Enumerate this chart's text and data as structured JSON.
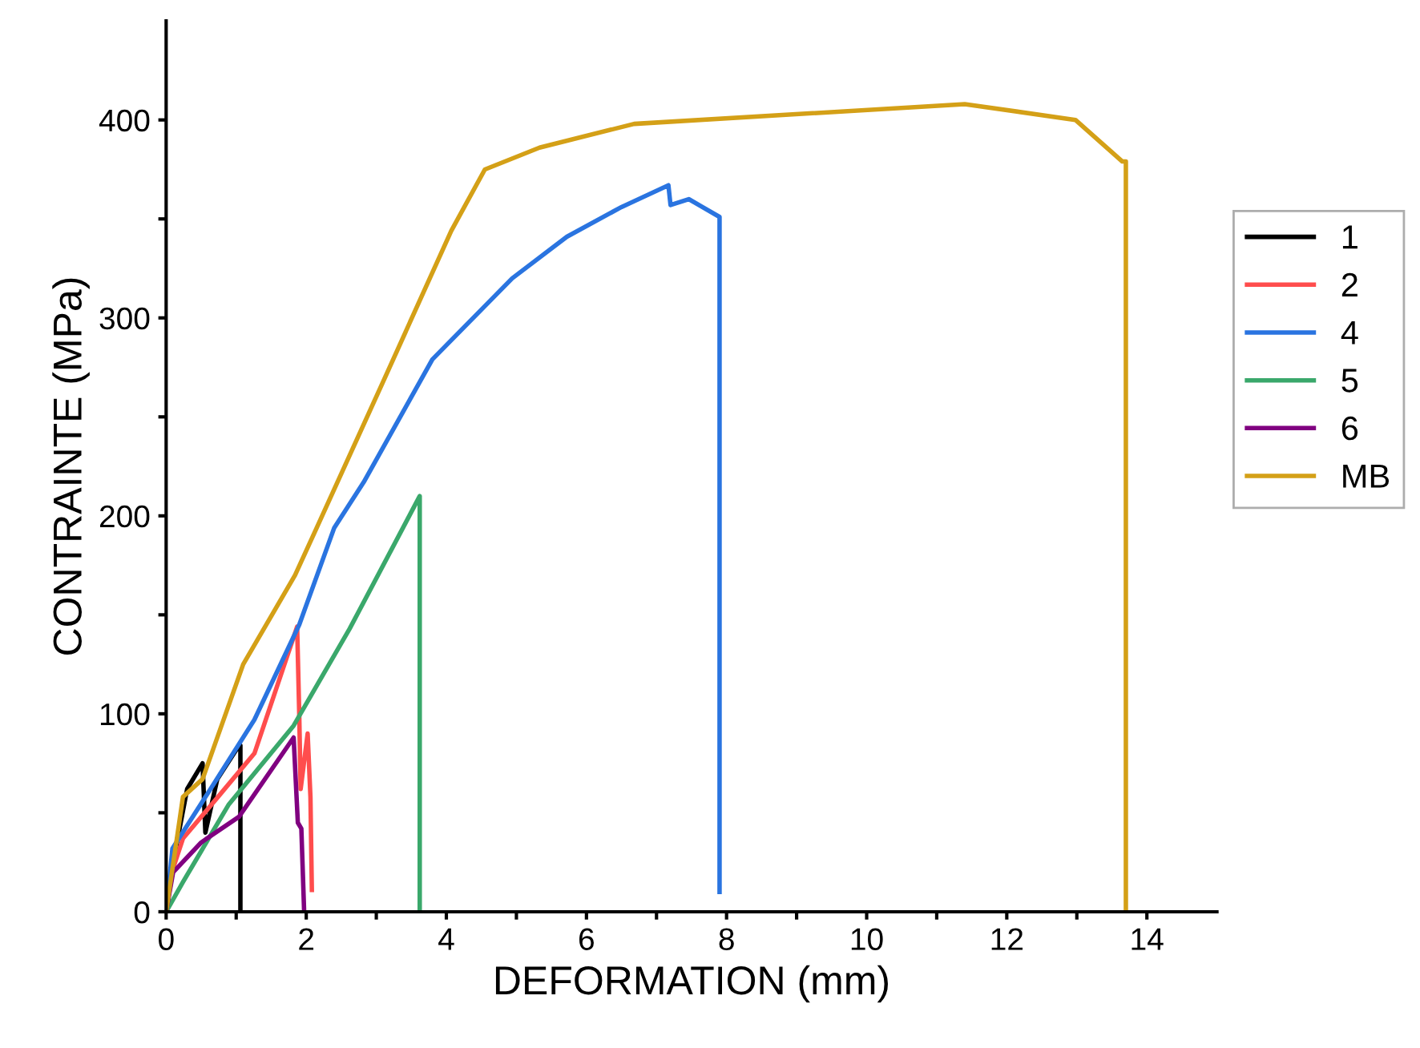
{
  "chart_data": {
    "type": "line",
    "xlabel": "DEFORMATION (mm)",
    "ylabel": "CONTRAINTE (MPa)",
    "xlim": [
      0,
      15
    ],
    "ylim": [
      0,
      450
    ],
    "xticks": [
      0,
      {
        "value": 1,
        "label": null
      },
      2,
      {
        "value": 3,
        "label": null
      },
      4,
      {
        "value": 5,
        "label": null
      },
      6,
      {
        "value": 7,
        "label": null
      },
      8,
      {
        "value": 9,
        "label": null
      },
      10,
      {
        "value": 11,
        "label": null
      },
      12,
      {
        "value": 13,
        "label": null
      },
      14
    ],
    "yticks": [
      0,
      {
        "value": 50,
        "label": null
      },
      100,
      {
        "value": 150,
        "label": null
      },
      200,
      {
        "value": 250,
        "label": null
      },
      300,
      {
        "value": 350,
        "label": null
      },
      400
    ],
    "grid": false,
    "legend": "right",
    "marker": "none",
    "line_style": "solid",
    "series": [
      {
        "name": "1",
        "color": "#000000",
        "x": [
          0,
          0.1,
          0.3,
          0.52,
          0.56,
          0.73,
          1.04,
          1.06,
          1.06
        ],
        "values": [
          0,
          25,
          62,
          75,
          40,
          67,
          84,
          84,
          0
        ]
      },
      {
        "name": "2",
        "color": "#ff4d4d",
        "x": [
          0,
          0.1,
          0.24,
          0.74,
          1.26,
          1.87,
          1.9,
          1.92,
          2.02,
          2.06,
          2.08
        ],
        "values": [
          0,
          22,
          37,
          58,
          80,
          144,
          100,
          62,
          90,
          58,
          11
        ]
      },
      {
        "name": "4",
        "color": "#2a74e0",
        "x": [
          0,
          0.09,
          0.67,
          1.26,
          1.9,
          2.4,
          2.82,
          3.8,
          4.94,
          5.72,
          6.5,
          7.17,
          7.2,
          7.46,
          7.9,
          7.9
        ],
        "values": [
          0,
          32,
          64,
          97,
          145,
          194,
          217,
          279,
          320,
          341,
          356,
          367,
          357,
          360,
          351,
          10
        ]
      },
      {
        "name": "5",
        "color": "#3aa86b",
        "x": [
          0,
          0.24,
          0.89,
          1.82,
          2.62,
          3.62,
          3.62
        ],
        "values": [
          0,
          15,
          54,
          94,
          143,
          210,
          0
        ]
      },
      {
        "name": "6",
        "color": "#800080",
        "x": [
          0,
          0.1,
          0.5,
          1.04,
          1.82,
          1.88,
          1.93,
          1.97
        ],
        "values": [
          0,
          20,
          35,
          48,
          88,
          45,
          42,
          0
        ]
      },
      {
        "name": "MB",
        "color": "#d4a017",
        "x": [
          0,
          0.24,
          0.52,
          1.1,
          1.84,
          2.15,
          3.1,
          4.07,
          4.55,
          5.33,
          6.68,
          11.4,
          12.98,
          13.65,
          13.7,
          13.7
        ],
        "values": [
          0,
          58,
          67,
          125,
          170,
          194,
          268,
          344,
          375,
          386,
          398,
          408,
          400,
          379,
          379,
          0
        ]
      }
    ]
  }
}
